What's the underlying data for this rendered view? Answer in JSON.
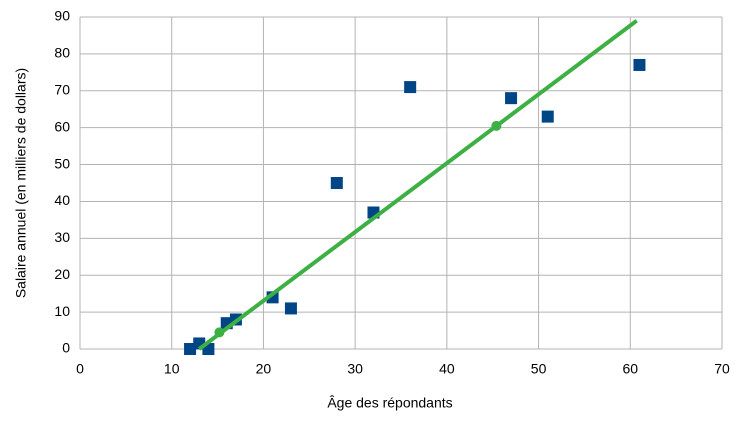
{
  "chart_data": {
    "type": "scatter",
    "xlabel": "Âge des répondants",
    "ylabel": "Salaire annuel (en milliers de dollars)",
    "xlim": [
      0,
      70
    ],
    "xticks": [
      0,
      10,
      20,
      30,
      40,
      50,
      60,
      70
    ],
    "ylim": [
      0,
      90
    ],
    "yticks": [
      0,
      10,
      20,
      30,
      40,
      50,
      60,
      70,
      80,
      90
    ],
    "grid": true,
    "series": [
      {
        "color": "#004586",
        "marker": "square",
        "x": [
          12,
          13,
          14,
          16,
          17,
          21,
          23,
          28,
          32,
          36,
          47,
          51,
          61
        ],
        "values": [
          0,
          1.5,
          0,
          7,
          8,
          14,
          11,
          45,
          37,
          71,
          68,
          63,
          77
        ]
      },
      {
        "color": "#3cb043",
        "marker": "none",
        "x": [
          13,
          60.7
        ],
        "values": [
          0,
          89
        ]
      },
      {
        "color": "#3cb043",
        "marker": "circle",
        "x": [
          15.2,
          45.4
        ],
        "values": [
          4.5,
          60.5
        ]
      }
    ]
  }
}
